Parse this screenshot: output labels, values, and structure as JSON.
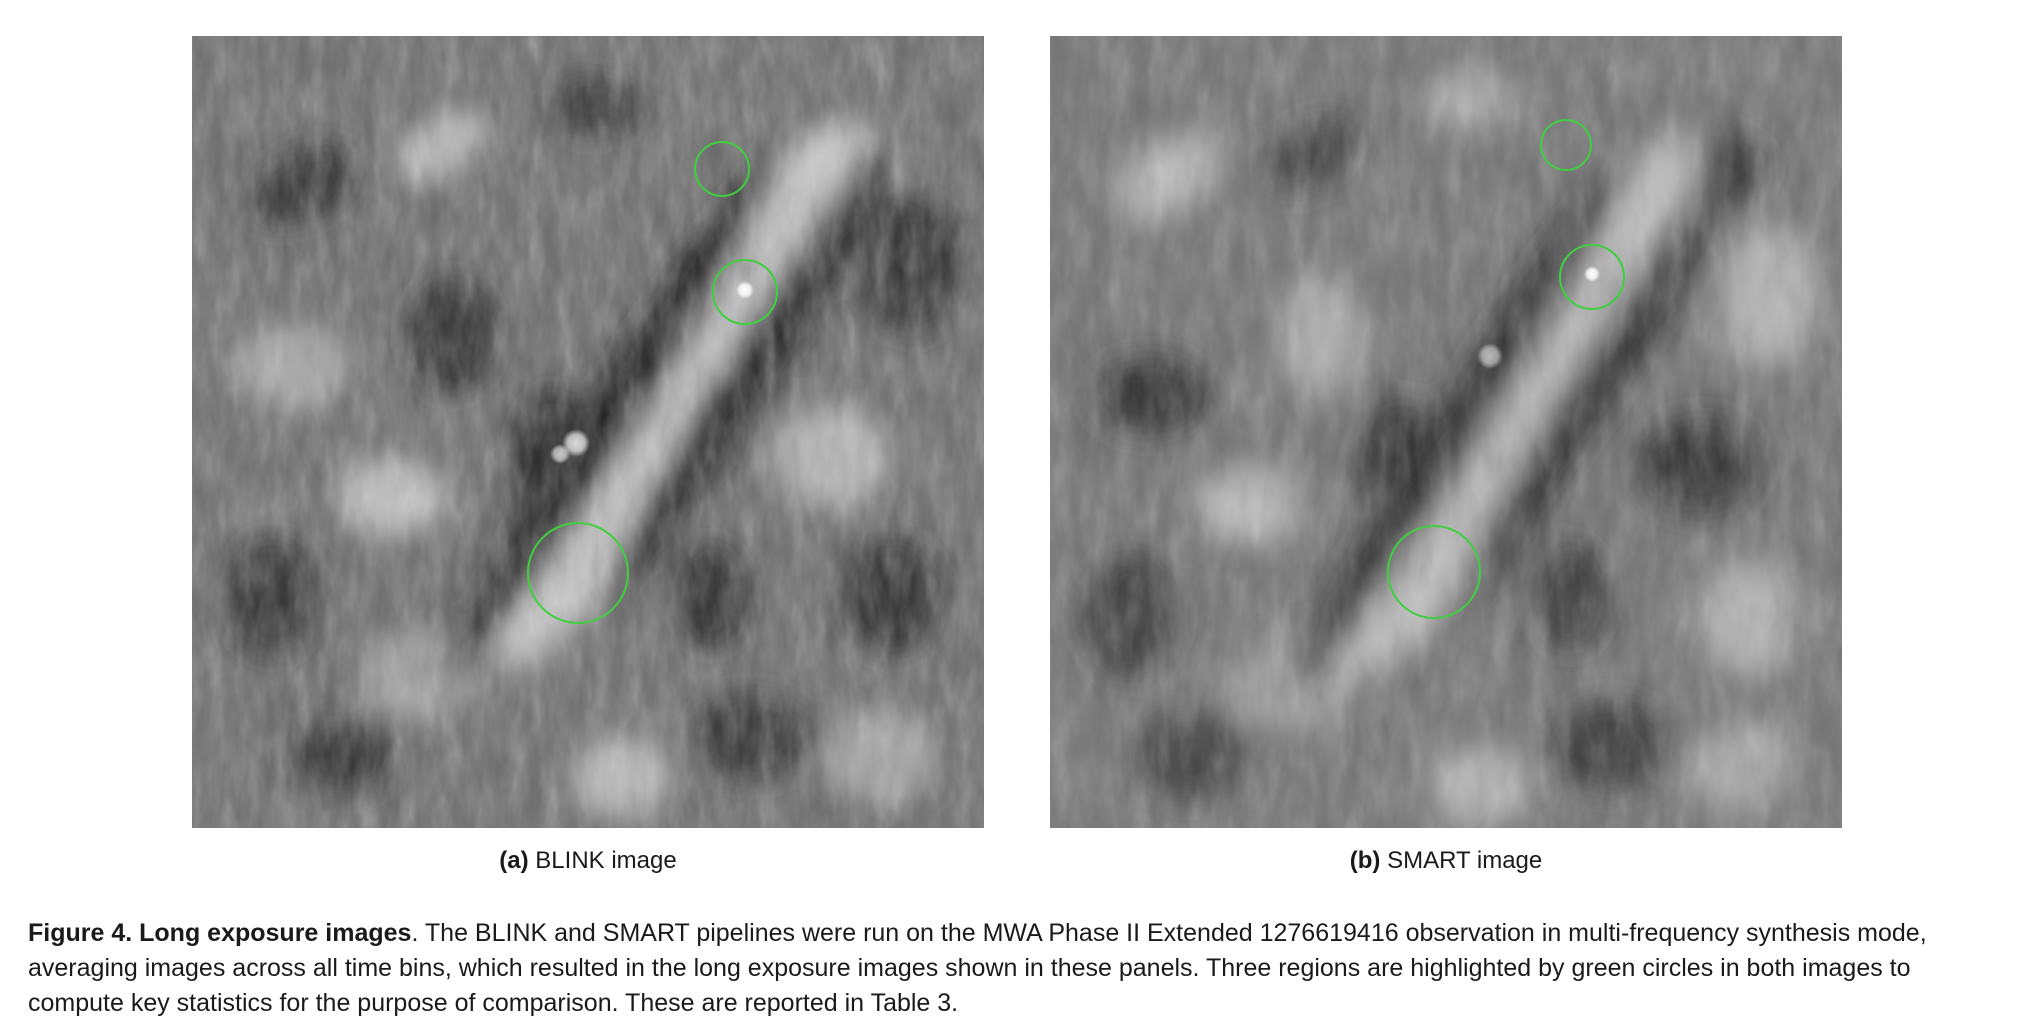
{
  "panels": [
    {
      "id": "a",
      "sub_label": "(a)",
      "sub_title": "BLINK image",
      "highlight_color": "#3fcf3f"
    },
    {
      "id": "b",
      "sub_label": "(b)",
      "sub_title": "SMART image",
      "highlight_color": "#3fcf3f"
    }
  ],
  "caption": {
    "figure_number": "Figure 4.",
    "figure_title": "Long exposure images",
    "title_punct": ".",
    "text": "The BLINK and SMART pipelines were run on the MWA Phase II Extended 1276619416 observation in multi-frequency synthesis mode, averaging images across all time bins, which resulted in the long exposure images shown in these panels. Three regions are highlighted by green circles in both images to compute key statistics for the purpose of comparison. These are reported in Table 3."
  }
}
